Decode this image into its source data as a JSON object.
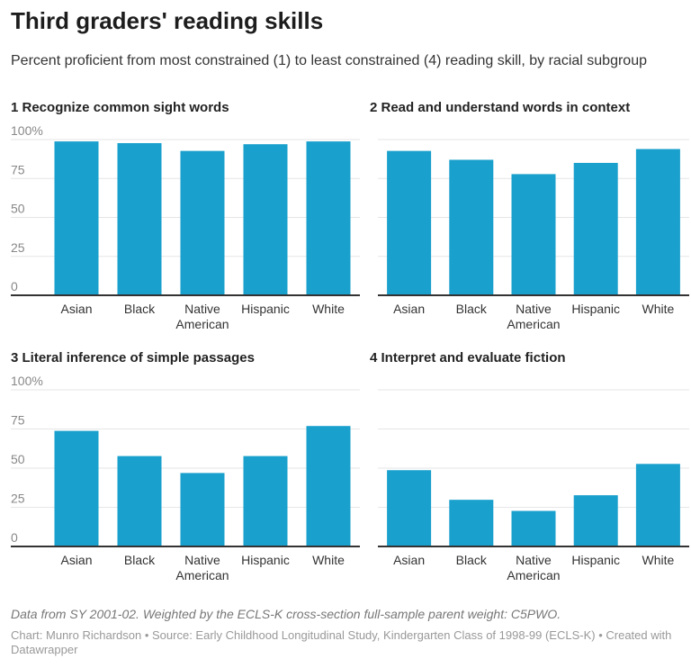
{
  "header": {
    "title": "Third graders' reading skills",
    "subtitle": "Percent proficient from most constrained (1) to least constrained (4) reading skill, by racial subgroup"
  },
  "colors": {
    "bar": "#1aa0cc",
    "grid": "#e6e6e6",
    "baseline": "#333333"
  },
  "chart_data": [
    {
      "type": "bar",
      "title": "1 Recognize common sight words",
      "categories": [
        "Asian",
        "Black",
        "Native American",
        "Hispanic",
        "White"
      ],
      "values": [
        98.8,
        97.7,
        92.7,
        97,
        98.8
      ],
      "ylim": [
        0,
        100
      ],
      "yticks": [
        "0",
        "25",
        "50",
        "75",
        "100%"
      ],
      "grid": true
    },
    {
      "type": "bar",
      "title": "2 Read and understand words in context",
      "categories": [
        "Asian",
        "Black",
        "Native American",
        "Hispanic",
        "White"
      ],
      "values": [
        92.7,
        87,
        77.8,
        85,
        93.9
      ],
      "ylim": [
        0,
        100
      ],
      "grid": true
    },
    {
      "type": "bar",
      "title": "3 Literal inference of simple passages",
      "categories": [
        "Asian",
        "Black",
        "Native American",
        "Hispanic",
        "White"
      ],
      "values": [
        73.8,
        57.7,
        46.9,
        57.7,
        76.9
      ],
      "ylim": [
        0,
        100
      ],
      "yticks": [
        "0",
        "25",
        "50",
        "75",
        "100%"
      ],
      "grid": true
    },
    {
      "type": "bar",
      "title": "4 Interpret and evaluate fiction",
      "categories": [
        "Asian",
        "Black",
        "Native American",
        "Hispanic",
        "White"
      ],
      "values": [
        48.7,
        29.8,
        22.7,
        32.7,
        52.7
      ],
      "ylim": [
        0,
        100
      ],
      "grid": true
    }
  ],
  "footer": {
    "notes": "Data from SY 2001-02. Weighted by the ECLS-K cross-section full-sample parent weight: C5PWO.",
    "byline": "Chart: Munro Richardson • Source: Early Childhood Longitudinal Study, Kindergarten Class of 1998-99 (ECLS-K) • Created with Datawrapper"
  }
}
